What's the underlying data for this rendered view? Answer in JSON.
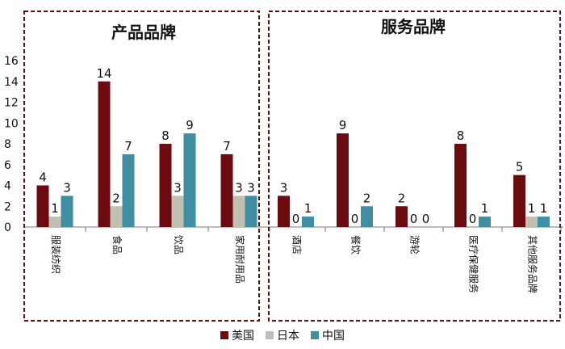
{
  "chart_data": {
    "type": "bar",
    "ylim": [
      0,
      16
    ],
    "yticks": [
      0,
      2,
      4,
      6,
      8,
      10,
      12,
      14,
      16
    ],
    "colors": {
      "美国": "#6b0a0f",
      "日本": "#c3bfb0",
      "中国": "#3f8ea2"
    },
    "panels": [
      {
        "title": "产品品牌",
        "categories": [
          "服装纺织",
          "食品",
          "饮品",
          "家用耐用品"
        ],
        "series": [
          {
            "name": "美国",
            "values": [
              4,
              14,
              8,
              7
            ]
          },
          {
            "name": "日本",
            "values": [
              1,
              2,
              3,
              3
            ]
          },
          {
            "name": "中国",
            "values": [
              3,
              7,
              9,
              3
            ]
          }
        ]
      },
      {
        "title": "服务品牌",
        "categories": [
          "酒店",
          "餐饮",
          "游轮",
          "医疗保健服务",
          "其他服务品牌"
        ],
        "series": [
          {
            "name": "美国",
            "values": [
              3,
              9,
              2,
              8,
              5
            ]
          },
          {
            "name": "日本",
            "values": [
              0,
              0,
              0,
              0,
              1
            ]
          },
          {
            "name": "中国",
            "values": [
              1,
              2,
              0,
              1,
              1
            ]
          }
        ]
      }
    ]
  },
  "legend": [
    {
      "label": "美国",
      "color": "#6b0a0f"
    },
    {
      "label": "日本",
      "color": "#c3bfb0"
    },
    {
      "label": "中国",
      "color": "#3f8ea2"
    }
  ]
}
